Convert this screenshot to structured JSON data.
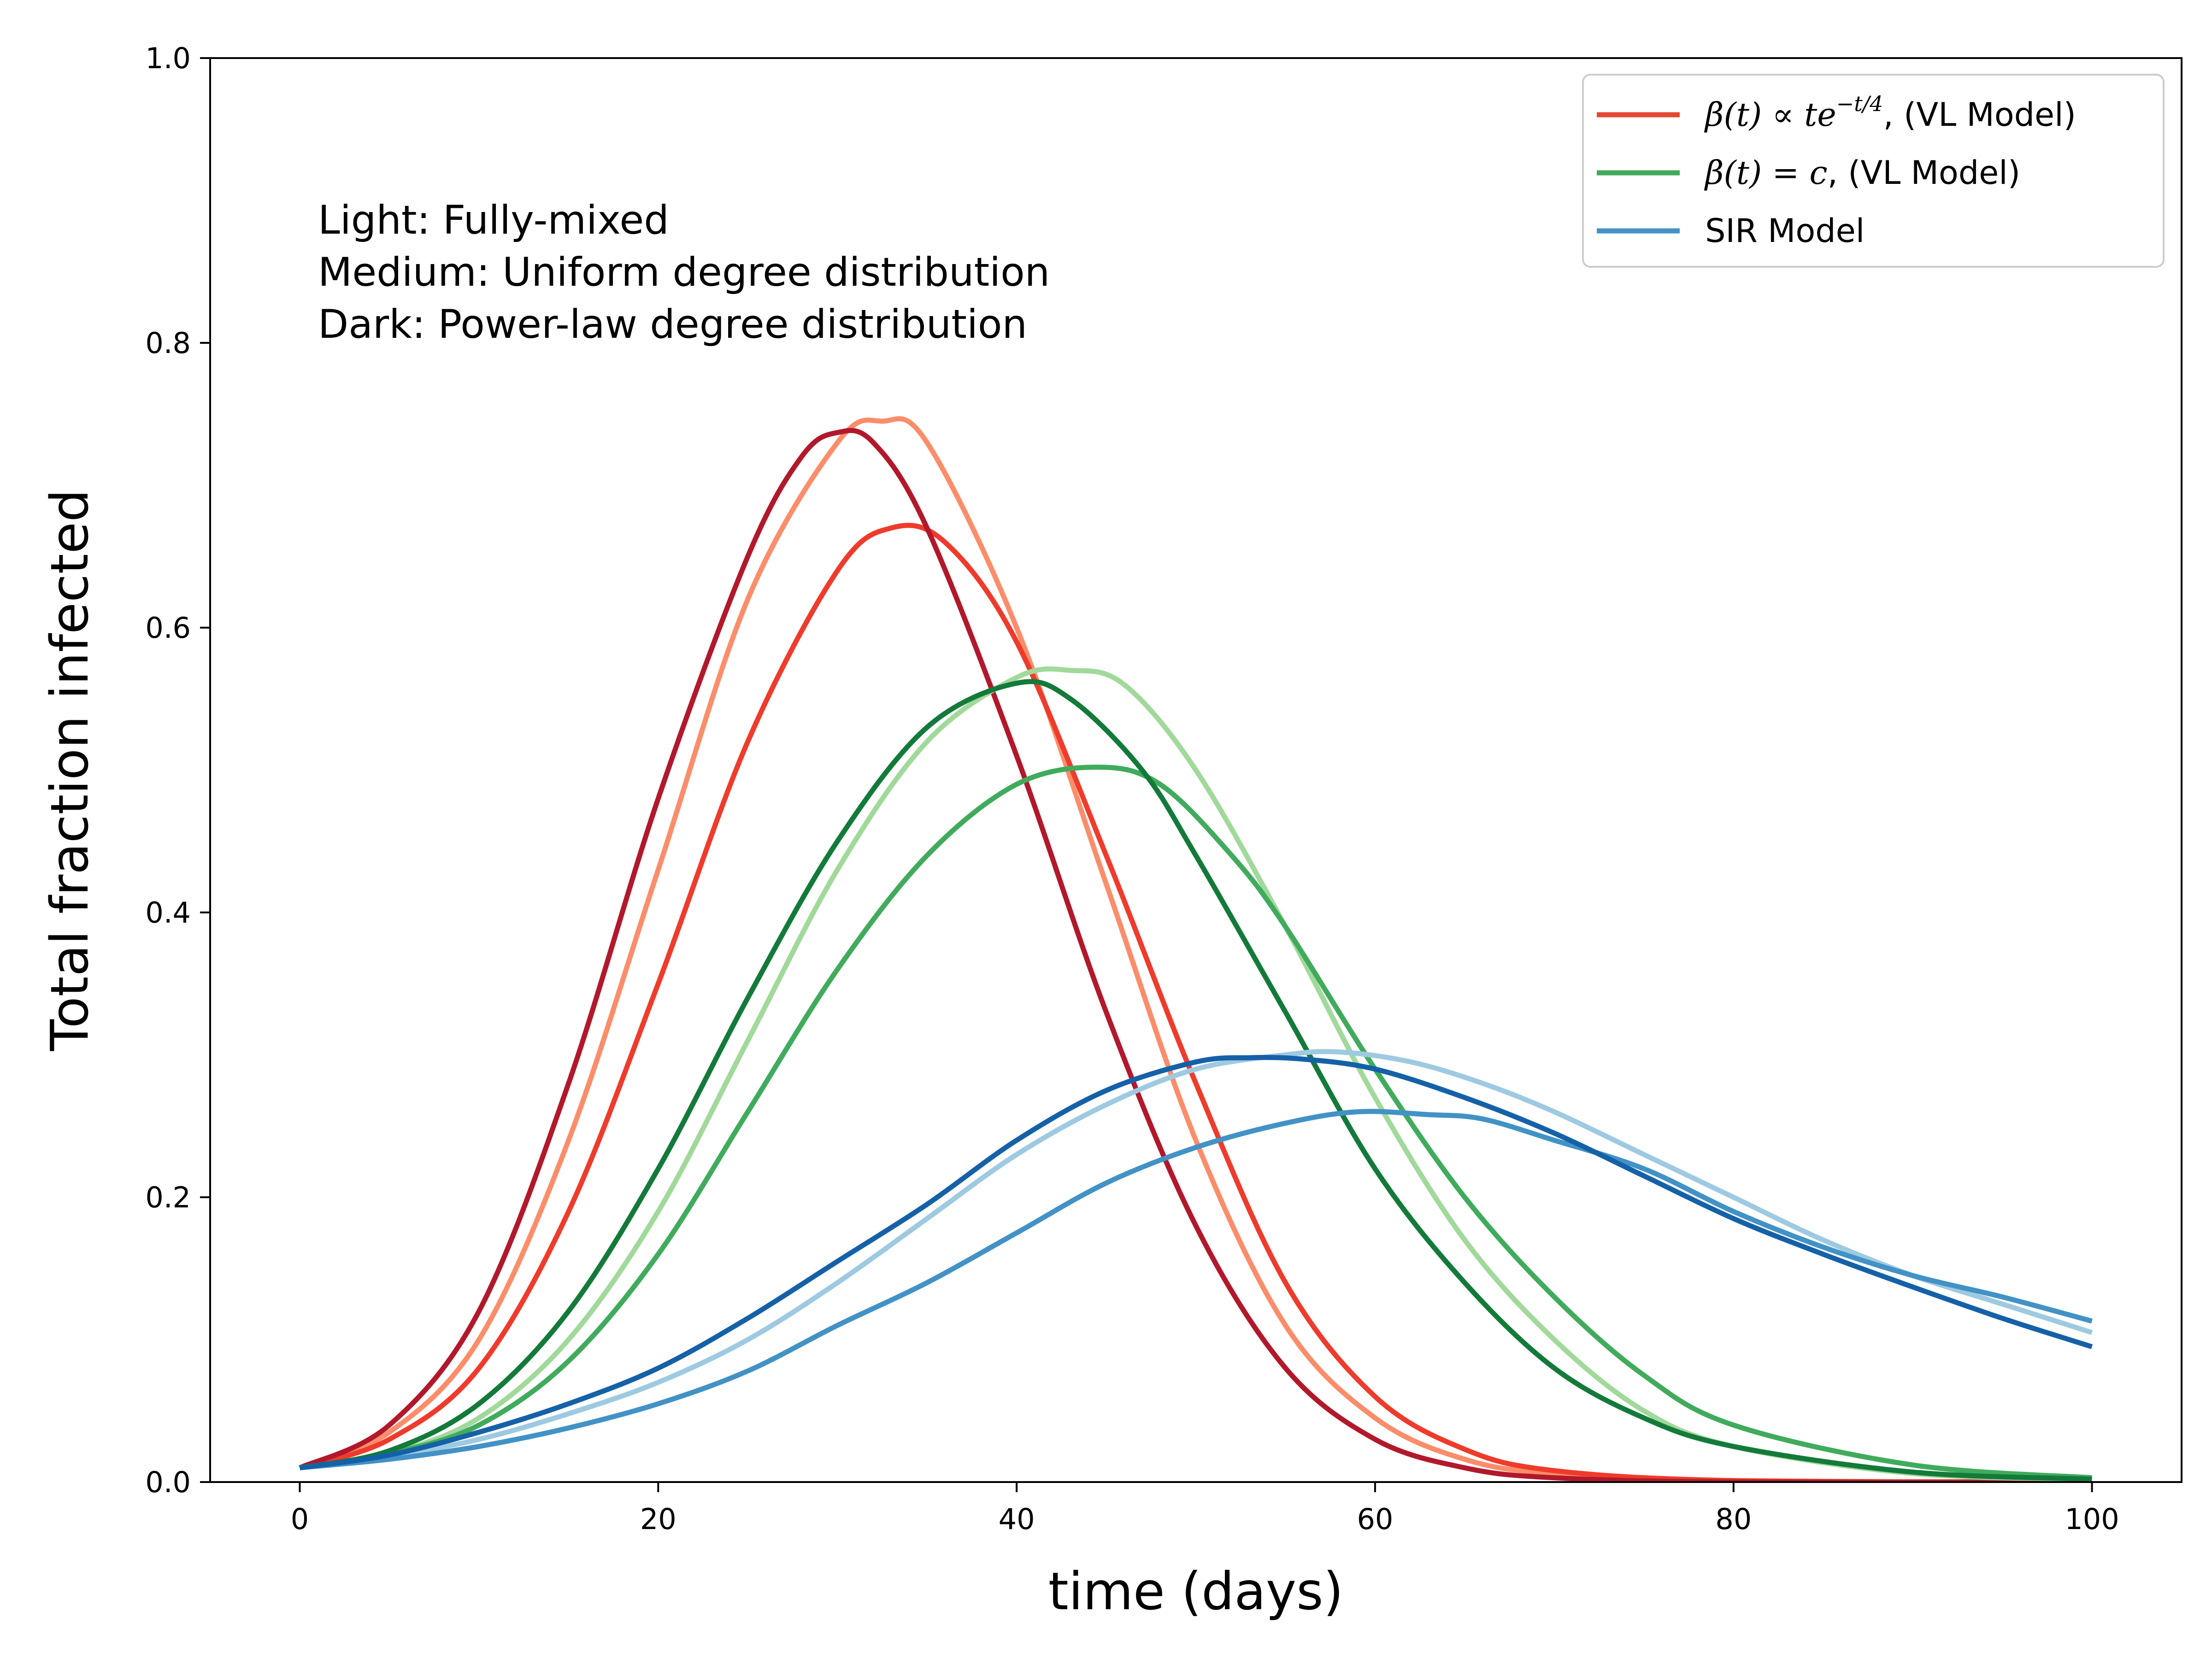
{
  "chart_data": {
    "type": "line",
    "title": "",
    "xlabel": "time (days)",
    "ylabel": "Total fraction infected",
    "xlim": [
      -5,
      105
    ],
    "ylim": [
      0.0,
      1.0
    ],
    "xticks": [
      0,
      20,
      40,
      60,
      80,
      100
    ],
    "yticks": [
      0.0,
      0.2,
      0.4,
      0.6,
      0.8,
      1.0
    ],
    "xtick_labels": [
      "0",
      "20",
      "40",
      "60",
      "80",
      "100"
    ],
    "ytick_labels": [
      "0.0",
      "0.2",
      "0.4",
      "0.6",
      "0.8",
      "1.0"
    ],
    "grid": false,
    "annotation": {
      "lines": [
        "Light: Fully-mixed",
        "Medium: Uniform degree distribution",
        "Dark: Power-law degree distribution"
      ]
    },
    "legend": {
      "placement": "top-right",
      "entries": [
        {
          "prefix": "β(t) ∝ te",
          "sup": "−t/4",
          "suffix": ", (VL Model)",
          "color": "#e34a33"
        },
        {
          "prefix": "β(t) = c",
          "sup": "",
          "suffix": ", (VL Model)",
          "color": "#41ab5d"
        },
        {
          "prefix": "SIR Model",
          "sup": "",
          "suffix": "",
          "color": "#4292c6"
        }
      ]
    },
    "series": [
      {
        "color": "#fc8d6a",
        "shade": "light",
        "points": [
          [
            0,
            0.01
          ],
          [
            5,
            0.035
          ],
          [
            10,
            0.1
          ],
          [
            15,
            0.24
          ],
          [
            20,
            0.43
          ],
          [
            25,
            0.62
          ],
          [
            30,
            0.73
          ],
          [
            32.5,
            0.745
          ],
          [
            35,
            0.73
          ],
          [
            40,
            0.6
          ],
          [
            45,
            0.42
          ],
          [
            50,
            0.24
          ],
          [
            55,
            0.11
          ],
          [
            60,
            0.045
          ],
          [
            65,
            0.016
          ],
          [
            70,
            0.006
          ],
          [
            80,
            0.001
          ],
          [
            100,
            0.0
          ]
        ]
      },
      {
        "color": "#ef3b2c",
        "shade": "medium",
        "points": [
          [
            0,
            0.01
          ],
          [
            5,
            0.03
          ],
          [
            10,
            0.08
          ],
          [
            15,
            0.19
          ],
          [
            20,
            0.35
          ],
          [
            25,
            0.52
          ],
          [
            30,
            0.64
          ],
          [
            33,
            0.67
          ],
          [
            36,
            0.66
          ],
          [
            40,
            0.59
          ],
          [
            45,
            0.44
          ],
          [
            50,
            0.28
          ],
          [
            55,
            0.14
          ],
          [
            60,
            0.06
          ],
          [
            65,
            0.023
          ],
          [
            70,
            0.008
          ],
          [
            80,
            0.001
          ],
          [
            100,
            0.0
          ]
        ]
      },
      {
        "color": "#b2182b",
        "shade": "dark",
        "points": [
          [
            0,
            0.01
          ],
          [
            5,
            0.04
          ],
          [
            10,
            0.12
          ],
          [
            15,
            0.28
          ],
          [
            20,
            0.48
          ],
          [
            25,
            0.65
          ],
          [
            28,
            0.72
          ],
          [
            30,
            0.737
          ],
          [
            32,
            0.73
          ],
          [
            35,
            0.67
          ],
          [
            40,
            0.51
          ],
          [
            45,
            0.33
          ],
          [
            50,
            0.18
          ],
          [
            55,
            0.08
          ],
          [
            60,
            0.03
          ],
          [
            65,
            0.01
          ],
          [
            70,
            0.003
          ],
          [
            80,
            0.0
          ],
          [
            100,
            0.0
          ]
        ]
      },
      {
        "color": "#a1d99b",
        "shade": "light",
        "points": [
          [
            0,
            0.01
          ],
          [
            5,
            0.02
          ],
          [
            10,
            0.045
          ],
          [
            15,
            0.1
          ],
          [
            20,
            0.19
          ],
          [
            25,
            0.31
          ],
          [
            30,
            0.43
          ],
          [
            35,
            0.52
          ],
          [
            40,
            0.565
          ],
          [
            43,
            0.57
          ],
          [
            46,
            0.56
          ],
          [
            50,
            0.5
          ],
          [
            55,
            0.39
          ],
          [
            60,
            0.27
          ],
          [
            65,
            0.17
          ],
          [
            70,
            0.1
          ],
          [
            75,
            0.05
          ],
          [
            80,
            0.025
          ],
          [
            90,
            0.006
          ],
          [
            100,
            0.002
          ]
        ]
      },
      {
        "color": "#41ab5d",
        "shade": "medium",
        "points": [
          [
            0,
            0.01
          ],
          [
            5,
            0.02
          ],
          [
            10,
            0.04
          ],
          [
            15,
            0.085
          ],
          [
            20,
            0.16
          ],
          [
            25,
            0.26
          ],
          [
            30,
            0.36
          ],
          [
            35,
            0.44
          ],
          [
            40,
            0.49
          ],
          [
            44.5,
            0.502
          ],
          [
            48,
            0.49
          ],
          [
            52,
            0.44
          ],
          [
            55,
            0.39
          ],
          [
            60,
            0.29
          ],
          [
            65,
            0.2
          ],
          [
            70,
            0.13
          ],
          [
            75,
            0.075
          ],
          [
            80,
            0.04
          ],
          [
            90,
            0.012
          ],
          [
            100,
            0.003
          ]
        ]
      },
      {
        "color": "#137a3a",
        "shade": "dark",
        "points": [
          [
            0,
            0.01
          ],
          [
            5,
            0.022
          ],
          [
            10,
            0.055
          ],
          [
            15,
            0.12
          ],
          [
            20,
            0.22
          ],
          [
            25,
            0.34
          ],
          [
            30,
            0.45
          ],
          [
            35,
            0.53
          ],
          [
            40,
            0.561
          ],
          [
            43,
            0.55
          ],
          [
            47,
            0.5
          ],
          [
            50,
            0.44
          ],
          [
            55,
            0.33
          ],
          [
            60,
            0.22
          ],
          [
            65,
            0.14
          ],
          [
            70,
            0.08
          ],
          [
            75,
            0.045
          ],
          [
            80,
            0.025
          ],
          [
            90,
            0.007
          ],
          [
            100,
            0.002
          ]
        ]
      },
      {
        "color": "#9ecae1",
        "shade": "light",
        "points": [
          [
            0,
            0.01
          ],
          [
            5,
            0.018
          ],
          [
            10,
            0.03
          ],
          [
            15,
            0.048
          ],
          [
            20,
            0.07
          ],
          [
            25,
            0.1
          ],
          [
            30,
            0.14
          ],
          [
            35,
            0.185
          ],
          [
            40,
            0.23
          ],
          [
            45,
            0.265
          ],
          [
            50,
            0.29
          ],
          [
            55,
            0.3
          ],
          [
            58,
            0.302
          ],
          [
            62,
            0.295
          ],
          [
            66,
            0.28
          ],
          [
            70,
            0.26
          ],
          [
            75,
            0.23
          ],
          [
            80,
            0.2
          ],
          [
            85,
            0.17
          ],
          [
            90,
            0.145
          ],
          [
            95,
            0.125
          ],
          [
            100,
            0.105
          ]
        ]
      },
      {
        "color": "#4292c6",
        "shade": "medium",
        "points": [
          [
            0,
            0.01
          ],
          [
            5,
            0.016
          ],
          [
            10,
            0.025
          ],
          [
            15,
            0.038
          ],
          [
            20,
            0.055
          ],
          [
            25,
            0.078
          ],
          [
            30,
            0.11
          ],
          [
            35,
            0.14
          ],
          [
            40,
            0.175
          ],
          [
            45,
            0.21
          ],
          [
            50,
            0.235
          ],
          [
            55,
            0.252
          ],
          [
            59,
            0.26
          ],
          [
            63,
            0.258
          ],
          [
            66,
            0.255
          ],
          [
            70,
            0.24
          ],
          [
            75,
            0.22
          ],
          [
            80,
            0.19
          ],
          [
            85,
            0.165
          ],
          [
            90,
            0.145
          ],
          [
            95,
            0.13
          ],
          [
            100,
            0.113
          ]
        ]
      },
      {
        "color": "#1561a8",
        "shade": "dark",
        "points": [
          [
            0,
            0.01
          ],
          [
            5,
            0.019
          ],
          [
            10,
            0.035
          ],
          [
            15,
            0.055
          ],
          [
            20,
            0.08
          ],
          [
            25,
            0.115
          ],
          [
            30,
            0.155
          ],
          [
            35,
            0.195
          ],
          [
            40,
            0.24
          ],
          [
            45,
            0.275
          ],
          [
            50,
            0.295
          ],
          [
            53,
            0.298
          ],
          [
            56,
            0.297
          ],
          [
            60,
            0.29
          ],
          [
            65,
            0.27
          ],
          [
            70,
            0.245
          ],
          [
            75,
            0.215
          ],
          [
            80,
            0.185
          ],
          [
            85,
            0.16
          ],
          [
            90,
            0.137
          ],
          [
            95,
            0.115
          ],
          [
            100,
            0.095
          ]
        ]
      }
    ]
  }
}
